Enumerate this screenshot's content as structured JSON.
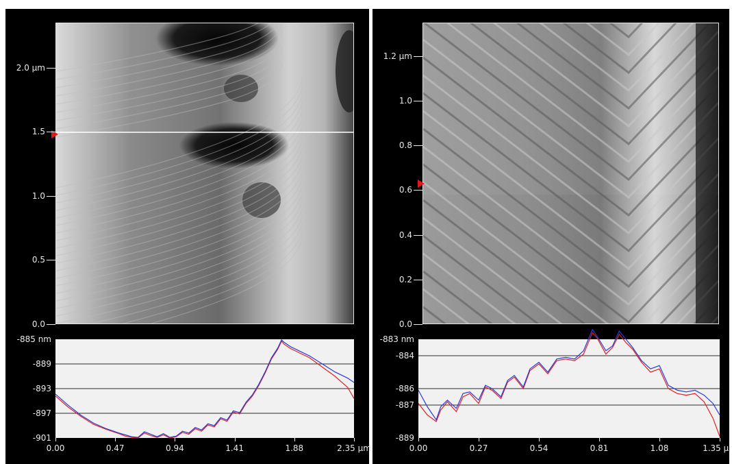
{
  "colors": {
    "trace_red": "#e02020",
    "trace_blue": "#2a3bd6",
    "marker": "#e21818"
  },
  "chart_data": [
    {
      "type": "heatmap",
      "title": "",
      "y_ticks": [
        "0.0",
        "0.5",
        "1.0",
        "1.5",
        "2.0 µm"
      ],
      "y_tick_values": [
        0.0,
        0.5,
        1.0,
        1.5,
        2.0
      ],
      "ylim": [
        0.0,
        2.35
      ],
      "xlim": [
        0.0,
        2.35
      ],
      "scan_marker_y": 1.48
    },
    {
      "type": "line",
      "title": "",
      "y_ticks": [
        "-885 nm",
        "-889",
        "-893",
        "-897",
        "-901"
      ],
      "y_tick_values": [
        -885,
        -889,
        -893,
        -897,
        -901
      ],
      "ylim": [
        -901,
        -885
      ],
      "x_ticks": [
        "0.00",
        "0.47",
        "0.94",
        "1.41",
        "1.88",
        "2.35 µm"
      ],
      "x_tick_values": [
        0.0,
        0.47,
        0.94,
        1.41,
        1.88,
        2.35
      ],
      "xlim": [
        0.0,
        2.35
      ],
      "grid": "horizontal",
      "x": [
        0.0,
        0.1,
        0.2,
        0.3,
        0.4,
        0.5,
        0.55,
        0.6,
        0.65,
        0.7,
        0.75,
        0.8,
        0.85,
        0.9,
        0.95,
        1.0,
        1.05,
        1.1,
        1.15,
        1.2,
        1.25,
        1.3,
        1.35,
        1.4,
        1.45,
        1.5,
        1.55,
        1.6,
        1.65,
        1.7,
        1.75,
        1.78,
        1.8,
        1.85,
        1.9,
        2.0,
        2.1,
        2.2,
        2.3,
        2.35
      ],
      "series": [
        {
          "values": [
            -894.2,
            -896.0,
            -897.5,
            -898.8,
            -899.6,
            -900.3,
            -900.7,
            -900.9,
            -901.0,
            -900.2,
            -900.6,
            -900.9,
            -900.5,
            -901.0,
            -900.8,
            -900.1,
            -900.4,
            -899.5,
            -899.9,
            -898.9,
            -899.2,
            -897.9,
            -898.3,
            -896.8,
            -897.1,
            -895.4,
            -894.2,
            -892.5,
            -890.5,
            -888.2,
            -886.6,
            -885.3,
            -885.8,
            -886.5,
            -887.0,
            -888.0,
            -889.5,
            -891.0,
            -892.8,
            -894.6
          ]
        },
        {
          "values": [
            -893.9,
            -895.7,
            -897.3,
            -898.6,
            -899.5,
            -900.2,
            -900.5,
            -900.8,
            -900.9,
            -900.0,
            -900.4,
            -900.8,
            -900.3,
            -900.9,
            -900.7,
            -899.9,
            -900.2,
            -899.3,
            -899.7,
            -898.7,
            -899.0,
            -897.7,
            -898.1,
            -896.6,
            -896.9,
            -895.2,
            -894.0,
            -892.3,
            -890.3,
            -888.0,
            -886.4,
            -885.1,
            -885.5,
            -886.2,
            -886.7,
            -887.7,
            -889.0,
            -890.3,
            -891.3,
            -892.0
          ]
        }
      ]
    },
    {
      "type": "heatmap",
      "title": "",
      "y_ticks": [
        "0.0",
        "0.2",
        "0.4",
        "0.6",
        "0.8",
        "1.0",
        "1.2 µm"
      ],
      "y_tick_values": [
        0.0,
        0.2,
        0.4,
        0.6,
        0.8,
        1.0,
        1.2
      ],
      "ylim": [
        0.0,
        1.35
      ],
      "xlim": [
        0.0,
        1.35
      ],
      "scan_marker_y": 0.63
    },
    {
      "type": "line",
      "title": "",
      "y_ticks": [
        "-883 nm",
        "-884",
        "-886",
        "-887",
        "-889"
      ],
      "y_tick_values": [
        -883,
        -884,
        -886,
        -887,
        -889
      ],
      "ylim": [
        -889,
        -883
      ],
      "x_ticks": [
        "0.00",
        "0.27",
        "0.54",
        "0.81",
        "1.08",
        "1.35 µm"
      ],
      "x_tick_values": [
        0.0,
        0.27,
        0.54,
        0.81,
        1.08,
        1.35
      ],
      "xlim": [
        0.0,
        1.35
      ],
      "grid": "horizontal",
      "x": [
        0.0,
        0.04,
        0.08,
        0.1,
        0.13,
        0.17,
        0.2,
        0.23,
        0.27,
        0.3,
        0.33,
        0.37,
        0.4,
        0.43,
        0.47,
        0.5,
        0.54,
        0.58,
        0.62,
        0.66,
        0.7,
        0.74,
        0.78,
        0.8,
        0.84,
        0.87,
        0.9,
        0.93,
        0.96,
        1.0,
        1.04,
        1.08,
        1.12,
        1.16,
        1.2,
        1.24,
        1.28,
        1.32,
        1.35
      ],
      "series": [
        {
          "values": [
            -886.9,
            -887.6,
            -888.0,
            -887.3,
            -886.8,
            -887.4,
            -886.5,
            -886.3,
            -886.9,
            -885.9,
            -886.1,
            -886.6,
            -885.6,
            -885.3,
            -886.0,
            -884.9,
            -884.5,
            -885.1,
            -884.3,
            -884.2,
            -884.3,
            -883.9,
            -882.6,
            -882.9,
            -883.9,
            -883.5,
            -882.7,
            -883.2,
            -883.6,
            -884.4,
            -885.0,
            -884.8,
            -886.0,
            -886.3,
            -886.4,
            -886.3,
            -886.8,
            -887.8,
            -888.9
          ]
        },
        {
          "values": [
            -886.1,
            -887.1,
            -887.9,
            -887.1,
            -886.7,
            -887.2,
            -886.3,
            -886.2,
            -886.7,
            -885.8,
            -886.0,
            -886.5,
            -885.5,
            -885.2,
            -885.9,
            -884.8,
            -884.4,
            -885.0,
            -884.2,
            -884.1,
            -884.2,
            -883.7,
            -882.4,
            -882.8,
            -883.7,
            -883.4,
            -882.5,
            -883.0,
            -883.5,
            -884.3,
            -884.8,
            -884.6,
            -885.8,
            -886.1,
            -886.2,
            -886.1,
            -886.4,
            -886.9,
            -887.6
          ]
        }
      ]
    }
  ]
}
